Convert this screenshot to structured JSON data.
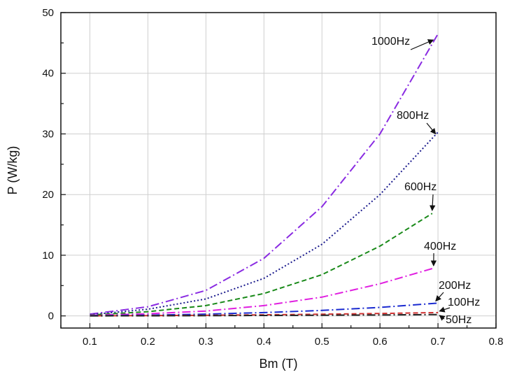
{
  "chart_data": {
    "type": "line",
    "title": "",
    "xlabel": "Bm (T)",
    "ylabel": "P (W/kg)",
    "xlim": [
      0.05,
      0.8
    ],
    "ylim": [
      -2,
      50
    ],
    "xticks": [
      0.1,
      0.2,
      0.3,
      0.4,
      0.5,
      0.6,
      0.7,
      0.8
    ],
    "xtick_labels": [
      "0.1",
      "0.2",
      "0.3",
      "0.4",
      "0.5",
      "0.6",
      "0.7",
      "0.8"
    ],
    "yticks": [
      0,
      10,
      20,
      30,
      40,
      50
    ],
    "ytick_labels": [
      "0",
      "10",
      "20",
      "30",
      "40",
      "50"
    ],
    "grid": true,
    "series": [
      {
        "name": "1000Hz",
        "color": "#8a2be2",
        "dash": "dashdot",
        "x": [
          0.1,
          0.2,
          0.3,
          0.4,
          0.5,
          0.6,
          0.7
        ],
        "values": [
          0.3,
          1.5,
          4.2,
          9.5,
          18.0,
          30.0,
          46.5
        ]
      },
      {
        "name": "800Hz",
        "color": "#1a1a8c",
        "dash": "dot",
        "x": [
          0.1,
          0.2,
          0.3,
          0.4,
          0.5,
          0.6,
          0.7
        ],
        "values": [
          0.2,
          1.1,
          2.8,
          6.2,
          11.8,
          20.0,
          30.3
        ]
      },
      {
        "name": "600Hz",
        "color": "#1a8a1a",
        "dash": "dash",
        "x": [
          0.1,
          0.2,
          0.3,
          0.4,
          0.5,
          0.6,
          0.69
        ],
        "values": [
          0.15,
          0.7,
          1.7,
          3.7,
          6.8,
          11.5,
          16.9
        ]
      },
      {
        "name": "400Hz",
        "color": "#e020e0",
        "dash": "dashdot",
        "x": [
          0.1,
          0.2,
          0.3,
          0.4,
          0.5,
          0.6,
          0.69
        ],
        "values": [
          0.1,
          0.35,
          0.8,
          1.7,
          3.1,
          5.3,
          7.8
        ]
      },
      {
        "name": "200Hz",
        "color": "#1a2ad0",
        "dash": "dashdot",
        "x": [
          0.1,
          0.2,
          0.3,
          0.4,
          0.5,
          0.6,
          0.7
        ],
        "values": [
          0.05,
          0.12,
          0.3,
          0.55,
          0.9,
          1.4,
          2.1
        ]
      },
      {
        "name": "100Hz",
        "color": "#d03030",
        "dash": "dash",
        "x": [
          0.1,
          0.2,
          0.3,
          0.4,
          0.5,
          0.6,
          0.7
        ],
        "values": [
          0.02,
          0.05,
          0.1,
          0.18,
          0.28,
          0.4,
          0.55
        ]
      },
      {
        "name": "50Hz",
        "color": "#222222",
        "dash": "dashdot",
        "x": [
          0.1,
          0.2,
          0.3,
          0.4,
          0.5,
          0.6,
          0.7
        ],
        "values": [
          0.01,
          0.02,
          0.04,
          0.07,
          0.11,
          0.16,
          0.22
        ]
      }
    ],
    "annotations": [
      {
        "text": "1000Hz",
        "series": "1000Hz",
        "point": [
          0.7,
          46.5
        ]
      },
      {
        "text": "800Hz",
        "series": "800Hz",
        "point": [
          0.7,
          30.3
        ]
      },
      {
        "text": "600Hz",
        "series": "600Hz",
        "point": [
          0.69,
          16.9
        ]
      },
      {
        "text": "400Hz",
        "series": "400Hz",
        "point": [
          0.69,
          7.8
        ]
      },
      {
        "text": "200Hz",
        "series": "200Hz",
        "point": [
          0.7,
          2.1
        ]
      },
      {
        "text": "100Hz",
        "series": "100Hz",
        "point": [
          0.7,
          0.55
        ]
      },
      {
        "text": "50Hz",
        "series": "50Hz",
        "point": [
          0.7,
          0.22
        ]
      }
    ]
  }
}
